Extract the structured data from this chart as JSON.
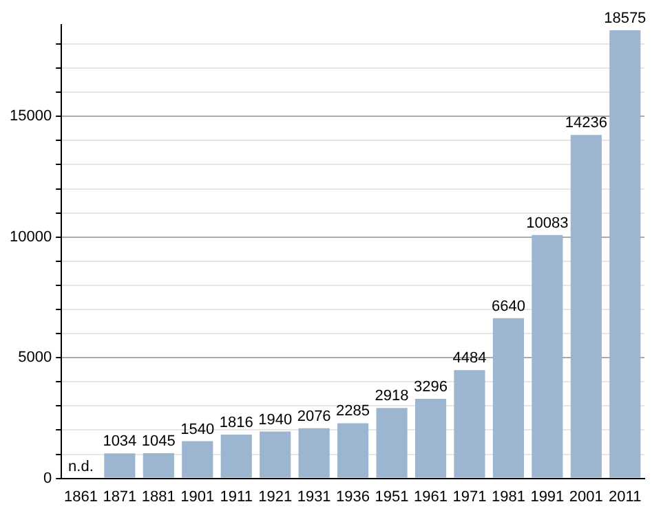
{
  "chart_data": {
    "type": "bar",
    "categories": [
      "1861",
      "1871",
      "1881",
      "1901",
      "1911",
      "1921",
      "1931",
      "1936",
      "1951",
      "1961",
      "1971",
      "1981",
      "1991",
      "2001",
      "2011"
    ],
    "values": [
      null,
      1034,
      1045,
      1540,
      1816,
      1940,
      2076,
      2285,
      2918,
      3296,
      4484,
      6640,
      10083,
      14236,
      18575
    ],
    "value_labels": [
      "n.d.",
      "1034",
      "1045",
      "1540",
      "1816",
      "1940",
      "2076",
      "2285",
      "2918",
      "3296",
      "4484",
      "6640",
      "10083",
      "14236",
      "18575"
    ],
    "color": "#9cb6d2",
    "ylim": [
      0,
      18800
    ],
    "yticks": [
      0,
      {
        "value": 1000,
        "label": null
      },
      {
        "value": 2000,
        "label": null
      },
      {
        "value": 3000,
        "label": null
      },
      {
        "value": 4000,
        "label": null
      },
      5000,
      {
        "value": 6000,
        "label": null
      },
      {
        "value": 7000,
        "label": null
      },
      {
        "value": 8000,
        "label": null
      },
      {
        "value": 9000,
        "label": null
      },
      10000,
      {
        "value": 11000,
        "label": null
      },
      {
        "value": 12000,
        "label": null
      },
      {
        "value": 13000,
        "label": null
      },
      {
        "value": 14000,
        "label": null
      },
      15000,
      {
        "value": 16000,
        "label": null
      },
      {
        "value": 17000,
        "label": null
      },
      {
        "value": 18000,
        "label": null
      }
    ],
    "grid": "y"
  }
}
